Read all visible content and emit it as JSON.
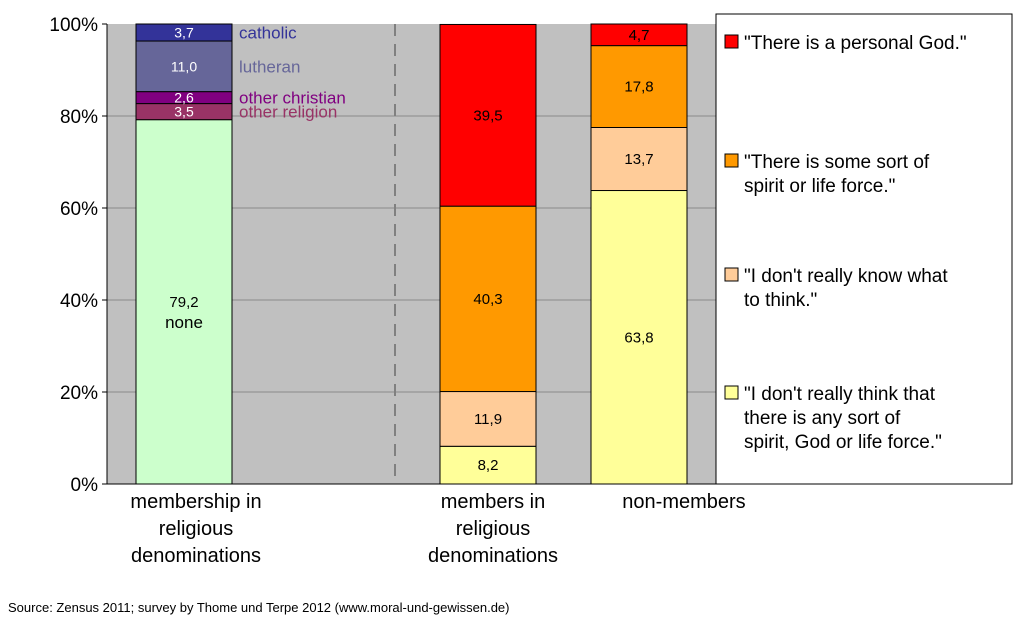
{
  "chart_data": {
    "type": "bar",
    "stacked": true,
    "y_axis": {
      "ylim": [
        0,
        100
      ],
      "ticks": [
        "0%",
        "20%",
        "40%",
        "60%",
        "80%",
        "100%"
      ],
      "grid": true
    },
    "membership_bar": {
      "label": "membership in religious denominations",
      "segments": [
        {
          "name": "none",
          "value": 79.2,
          "display": "79,2",
          "color": "#ccffcc"
        },
        {
          "name": "other religion",
          "value": 3.5,
          "display": "3,5",
          "color": "#993366"
        },
        {
          "name": "other christian",
          "value": 2.6,
          "display": "2,6",
          "color": "#800080"
        },
        {
          "name": "lutheran",
          "value": 11.0,
          "display": "11,0",
          "color": "#666699"
        },
        {
          "name": "catholic",
          "value": 3.7,
          "display": "3,7",
          "color": "#333399"
        }
      ]
    },
    "series": [
      {
        "name": "\"I don't really think that there is any sort of spirit, God or life force.\"",
        "color": "#ffff99"
      },
      {
        "name": "\"I don't really know what to think.\"",
        "color": "#ffcc99"
      },
      {
        "name": "\"There is some sort of spirit or life force.\"",
        "color": "#ff9900"
      },
      {
        "name": "\"There is a personal God.\"",
        "color": "#ff0000"
      }
    ],
    "categories": [
      "members in religious denominations",
      "non-members"
    ],
    "values": [
      [
        8.2,
        11.9,
        40.3,
        39.5
      ],
      [
        63.8,
        13.7,
        17.8,
        4.7
      ]
    ],
    "value_labels": [
      [
        "8,2",
        "11,9",
        "40,3",
        "39,5"
      ],
      [
        "63,8",
        "13,7",
        "17,8",
        "4,7"
      ]
    ],
    "legend_position": "right"
  },
  "source": "Source: Zensus 2011; survey by Thome und Terpe 2012 (www.moral-und-gewissen.de)"
}
